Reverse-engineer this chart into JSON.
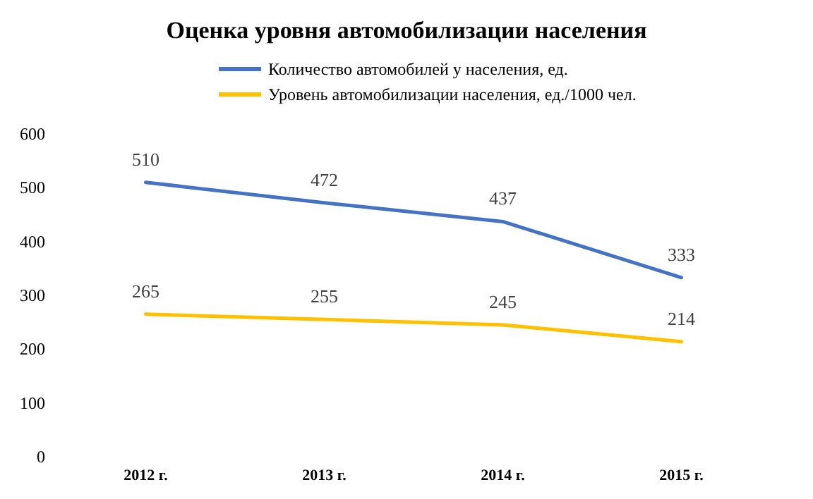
{
  "chart_data": {
    "type": "line",
    "title": "Оценка уровня автомобилизации населения",
    "categories": [
      "2012 г.",
      "2013 г.",
      "2014 г.",
      "2015 г."
    ],
    "series": [
      {
        "name": "Количество автомобилей у населения, ед.",
        "color": "#4472c4",
        "values": [
          510,
          472,
          437,
          333
        ]
      },
      {
        "name": "Уровень автомобилизации населения, ед./1000 чел.",
        "color": "#ffc000",
        "values": [
          265,
          255,
          245,
          214
        ]
      }
    ],
    "ylim": [
      0,
      600
    ],
    "yticks": [
      0,
      100,
      200,
      300,
      400,
      500,
      600
    ],
    "grid": false,
    "legend": "top",
    "marker": "none",
    "line_style": "solid",
    "data_labels": true
  }
}
